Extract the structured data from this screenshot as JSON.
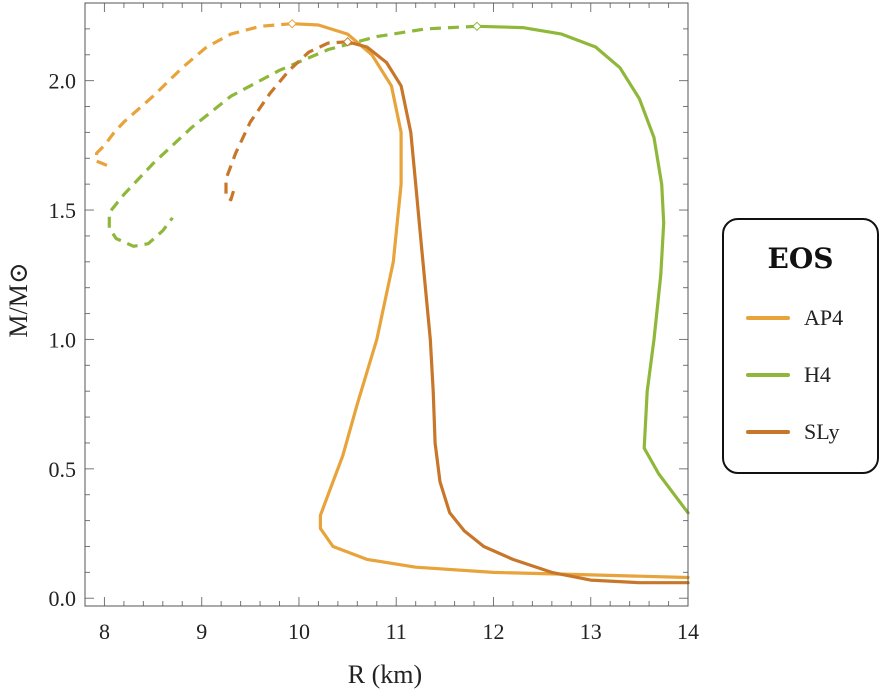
{
  "chart_data": {
    "type": "line",
    "xlabel": "R (km)",
    "ylabel": "M/M⊙",
    "xlim": [
      7.8,
      14.0
    ],
    "ylim": [
      -0.03,
      2.3
    ],
    "xticks": [
      8,
      9,
      10,
      11,
      12,
      13,
      14
    ],
    "yticks": [
      0.0,
      0.5,
      1.0,
      1.5,
      2.0
    ],
    "ytick_labels": [
      "0.0",
      "0.5",
      "1.0",
      "1.5",
      "2.0"
    ],
    "legend": {
      "title": "EOS",
      "placement": "right"
    },
    "series": [
      {
        "name": "AP4",
        "color": "#e8a33b",
        "max_mass_marker": [
          9.93,
          2.22
        ],
        "stable": [
          [
            14.0,
            0.08
          ],
          [
            13.0,
            0.09
          ],
          [
            12.0,
            0.1
          ],
          [
            11.2,
            0.12
          ],
          [
            10.7,
            0.15
          ],
          [
            10.35,
            0.2
          ],
          [
            10.22,
            0.27
          ],
          [
            10.22,
            0.32
          ],
          [
            10.3,
            0.4
          ],
          [
            10.45,
            0.55
          ],
          [
            10.6,
            0.75
          ],
          [
            10.8,
            1.0
          ],
          [
            10.97,
            1.3
          ],
          [
            11.05,
            1.6
          ],
          [
            11.05,
            1.8
          ],
          [
            10.95,
            1.98
          ],
          [
            10.75,
            2.1
          ],
          [
            10.5,
            2.18
          ],
          [
            10.2,
            2.215
          ],
          [
            9.93,
            2.22
          ]
        ],
        "unstable": [
          [
            9.93,
            2.22
          ],
          [
            9.6,
            2.21
          ],
          [
            9.3,
            2.18
          ],
          [
            9.05,
            2.13
          ],
          [
            8.8,
            2.05
          ],
          [
            8.5,
            1.94
          ],
          [
            8.2,
            1.84
          ],
          [
            8.1,
            1.8
          ],
          [
            8.0,
            1.75
          ],
          [
            7.92,
            1.72
          ],
          [
            7.91,
            1.69
          ],
          [
            7.98,
            1.68
          ],
          [
            8.04,
            1.67
          ]
        ]
      },
      {
        "name": "H4",
        "color": "#8fb83b",
        "max_mass_marker": [
          11.83,
          2.21
        ],
        "stable": [
          [
            14.0,
            0.33
          ],
          [
            13.9,
            0.38
          ],
          [
            13.7,
            0.48
          ],
          [
            13.55,
            0.58
          ],
          [
            13.58,
            0.8
          ],
          [
            13.65,
            1.0
          ],
          [
            13.72,
            1.25
          ],
          [
            13.75,
            1.45
          ],
          [
            13.73,
            1.6
          ],
          [
            13.65,
            1.78
          ],
          [
            13.5,
            1.93
          ],
          [
            13.3,
            2.05
          ],
          [
            13.05,
            2.13
          ],
          [
            12.7,
            2.18
          ],
          [
            12.3,
            2.205
          ],
          [
            11.83,
            2.21
          ]
        ],
        "unstable": [
          [
            11.83,
            2.21
          ],
          [
            11.3,
            2.2
          ],
          [
            10.8,
            2.17
          ],
          [
            10.3,
            2.12
          ],
          [
            9.8,
            2.04
          ],
          [
            9.3,
            1.94
          ],
          [
            8.9,
            1.82
          ],
          [
            8.5,
            1.68
          ],
          [
            8.2,
            1.56
          ],
          [
            8.05,
            1.49
          ],
          [
            8.05,
            1.43
          ],
          [
            8.12,
            1.39
          ],
          [
            8.3,
            1.36
          ],
          [
            8.45,
            1.37
          ],
          [
            8.6,
            1.42
          ],
          [
            8.7,
            1.47
          ]
        ]
      },
      {
        "name": "SLy",
        "color": "#c8772a",
        "max_mass_marker": [
          10.5,
          2.15
        ],
        "stable": [
          [
            14.0,
            0.06
          ],
          [
            13.5,
            0.06
          ],
          [
            13.0,
            0.07
          ],
          [
            12.6,
            0.1
          ],
          [
            12.2,
            0.15
          ],
          [
            11.9,
            0.2
          ],
          [
            11.7,
            0.26
          ],
          [
            11.55,
            0.33
          ],
          [
            11.45,
            0.45
          ],
          [
            11.4,
            0.6
          ],
          [
            11.38,
            0.8
          ],
          [
            11.35,
            1.0
          ],
          [
            11.3,
            1.2
          ],
          [
            11.25,
            1.4
          ],
          [
            11.2,
            1.6
          ],
          [
            11.15,
            1.8
          ],
          [
            11.05,
            1.98
          ],
          [
            10.9,
            2.07
          ],
          [
            10.7,
            2.13
          ],
          [
            10.5,
            2.15
          ]
        ],
        "unstable": [
          [
            10.5,
            2.15
          ],
          [
            10.3,
            2.145
          ],
          [
            10.1,
            2.11
          ],
          [
            9.9,
            2.04
          ],
          [
            9.7,
            1.95
          ],
          [
            9.5,
            1.84
          ],
          [
            9.35,
            1.72
          ],
          [
            9.25,
            1.62
          ],
          [
            9.25,
            1.55
          ],
          [
            9.3,
            1.54
          ],
          [
            9.34,
            1.59
          ]
        ]
      }
    ]
  }
}
